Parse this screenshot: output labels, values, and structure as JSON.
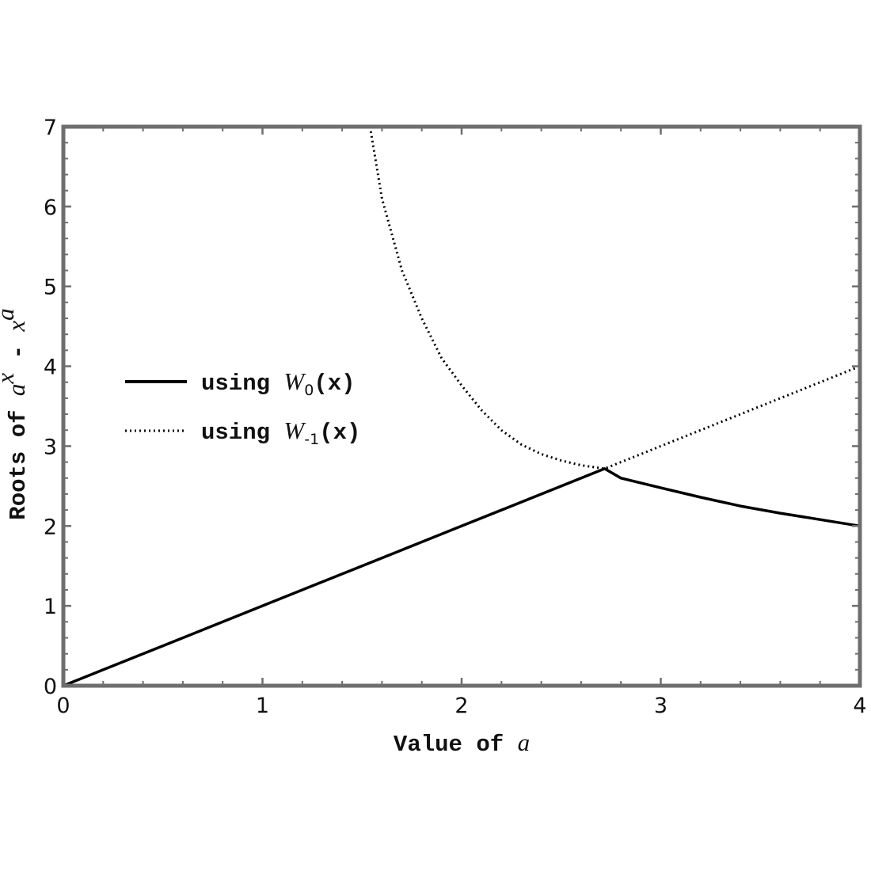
{
  "chart_data": {
    "type": "line",
    "title": "",
    "xlabel_parts": {
      "text": "Value of ",
      "var": "a"
    },
    "ylabel_parts": {
      "prefix": "Roots of ",
      "base1": "a",
      "sup1": "x",
      "minus": " - ",
      "base2": "x",
      "sup2": "a"
    },
    "xlim": [
      0,
      4
    ],
    "ylim": [
      0,
      7
    ],
    "x_ticks": [
      0,
      1,
      2,
      3,
      4
    ],
    "y_ticks": [
      0,
      1,
      2,
      3,
      4,
      5,
      6,
      7
    ],
    "grid": false,
    "legend_position": "middle-left",
    "series": [
      {
        "name": "using W0(x)",
        "legend": {
          "pre": "using ",
          "fn": "W",
          "sub": "0",
          "post": "(x)"
        },
        "style": "solid",
        "color": "#000000",
        "points": [
          [
            0,
            0
          ],
          [
            0.5,
            0.5
          ],
          [
            1,
            1
          ],
          [
            1.5,
            1.5
          ],
          [
            2,
            2
          ],
          [
            2.5,
            2.5
          ],
          [
            2.718,
            2.718
          ],
          [
            2.8,
            2.6
          ],
          [
            3,
            2.478
          ],
          [
            3.2,
            2.36
          ],
          [
            3.4,
            2.25
          ],
          [
            3.6,
            2.16
          ],
          [
            3.8,
            2.08
          ],
          [
            4,
            2
          ]
        ]
      },
      {
        "name": "using W-1(x)",
        "legend": {
          "pre": "using ",
          "fn": "W",
          "sub": "-1",
          "post": "(x)"
        },
        "style": "dotted",
        "color": "#000000",
        "points": [
          [
            1.54,
            7
          ],
          [
            1.6,
            6.1
          ],
          [
            1.7,
            5.2
          ],
          [
            1.8,
            4.6
          ],
          [
            1.9,
            4.1
          ],
          [
            2,
            3.76
          ],
          [
            2.1,
            3.45
          ],
          [
            2.2,
            3.2
          ],
          [
            2.3,
            3.02
          ],
          [
            2.4,
            2.9
          ],
          [
            2.5,
            2.82
          ],
          [
            2.6,
            2.76
          ],
          [
            2.718,
            2.718
          ],
          [
            3,
            3
          ],
          [
            3.5,
            3.5
          ],
          [
            4,
            4
          ]
        ]
      }
    ]
  }
}
